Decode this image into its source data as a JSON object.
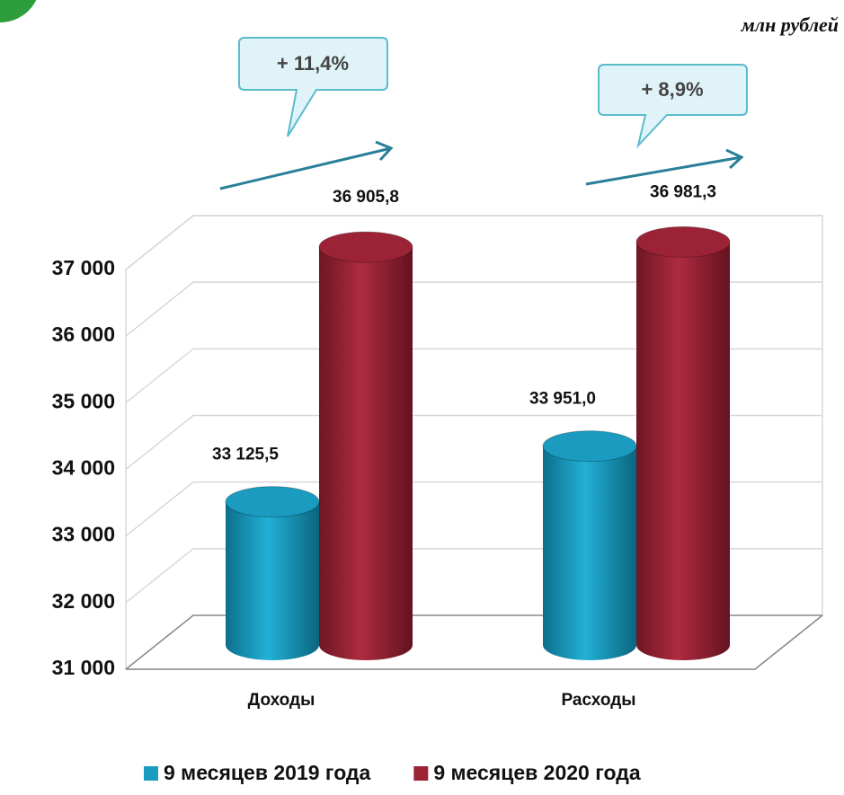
{
  "chart_data": {
    "type": "bar",
    "unit_note": "млн рублей",
    "categories": [
      "Доходы",
      "Расходы"
    ],
    "series": [
      {
        "name": "9 месяцев 2019 года",
        "color": "#1a9bbf",
        "values": [
          33125.5,
          33951.0
        ],
        "value_labels": [
          "33 125,5",
          "33 951,0"
        ]
      },
      {
        "name": "9 месяцев 2020 года",
        "color": "#9b2335",
        "values": [
          36905.8,
          36981.3
        ],
        "value_labels": [
          "36 905,8",
          "36 981,3"
        ]
      }
    ],
    "annotations": [
      "+ 11,4%",
      "+ 8,9%"
    ],
    "ylim": [
      31000,
      37000
    ],
    "yticks": [
      {
        "value": 31000,
        "label": "31 000"
      },
      {
        "value": 32000,
        "label": "32 000"
      },
      {
        "value": 33000,
        "label": "33 000"
      },
      {
        "value": 34000,
        "label": "34 000"
      },
      {
        "value": 35000,
        "label": "35 000"
      },
      {
        "value": 36000,
        "label": "36 000"
      },
      {
        "value": 37000,
        "label": "37 000"
      }
    ],
    "grid": true,
    "legend": "bottom"
  }
}
